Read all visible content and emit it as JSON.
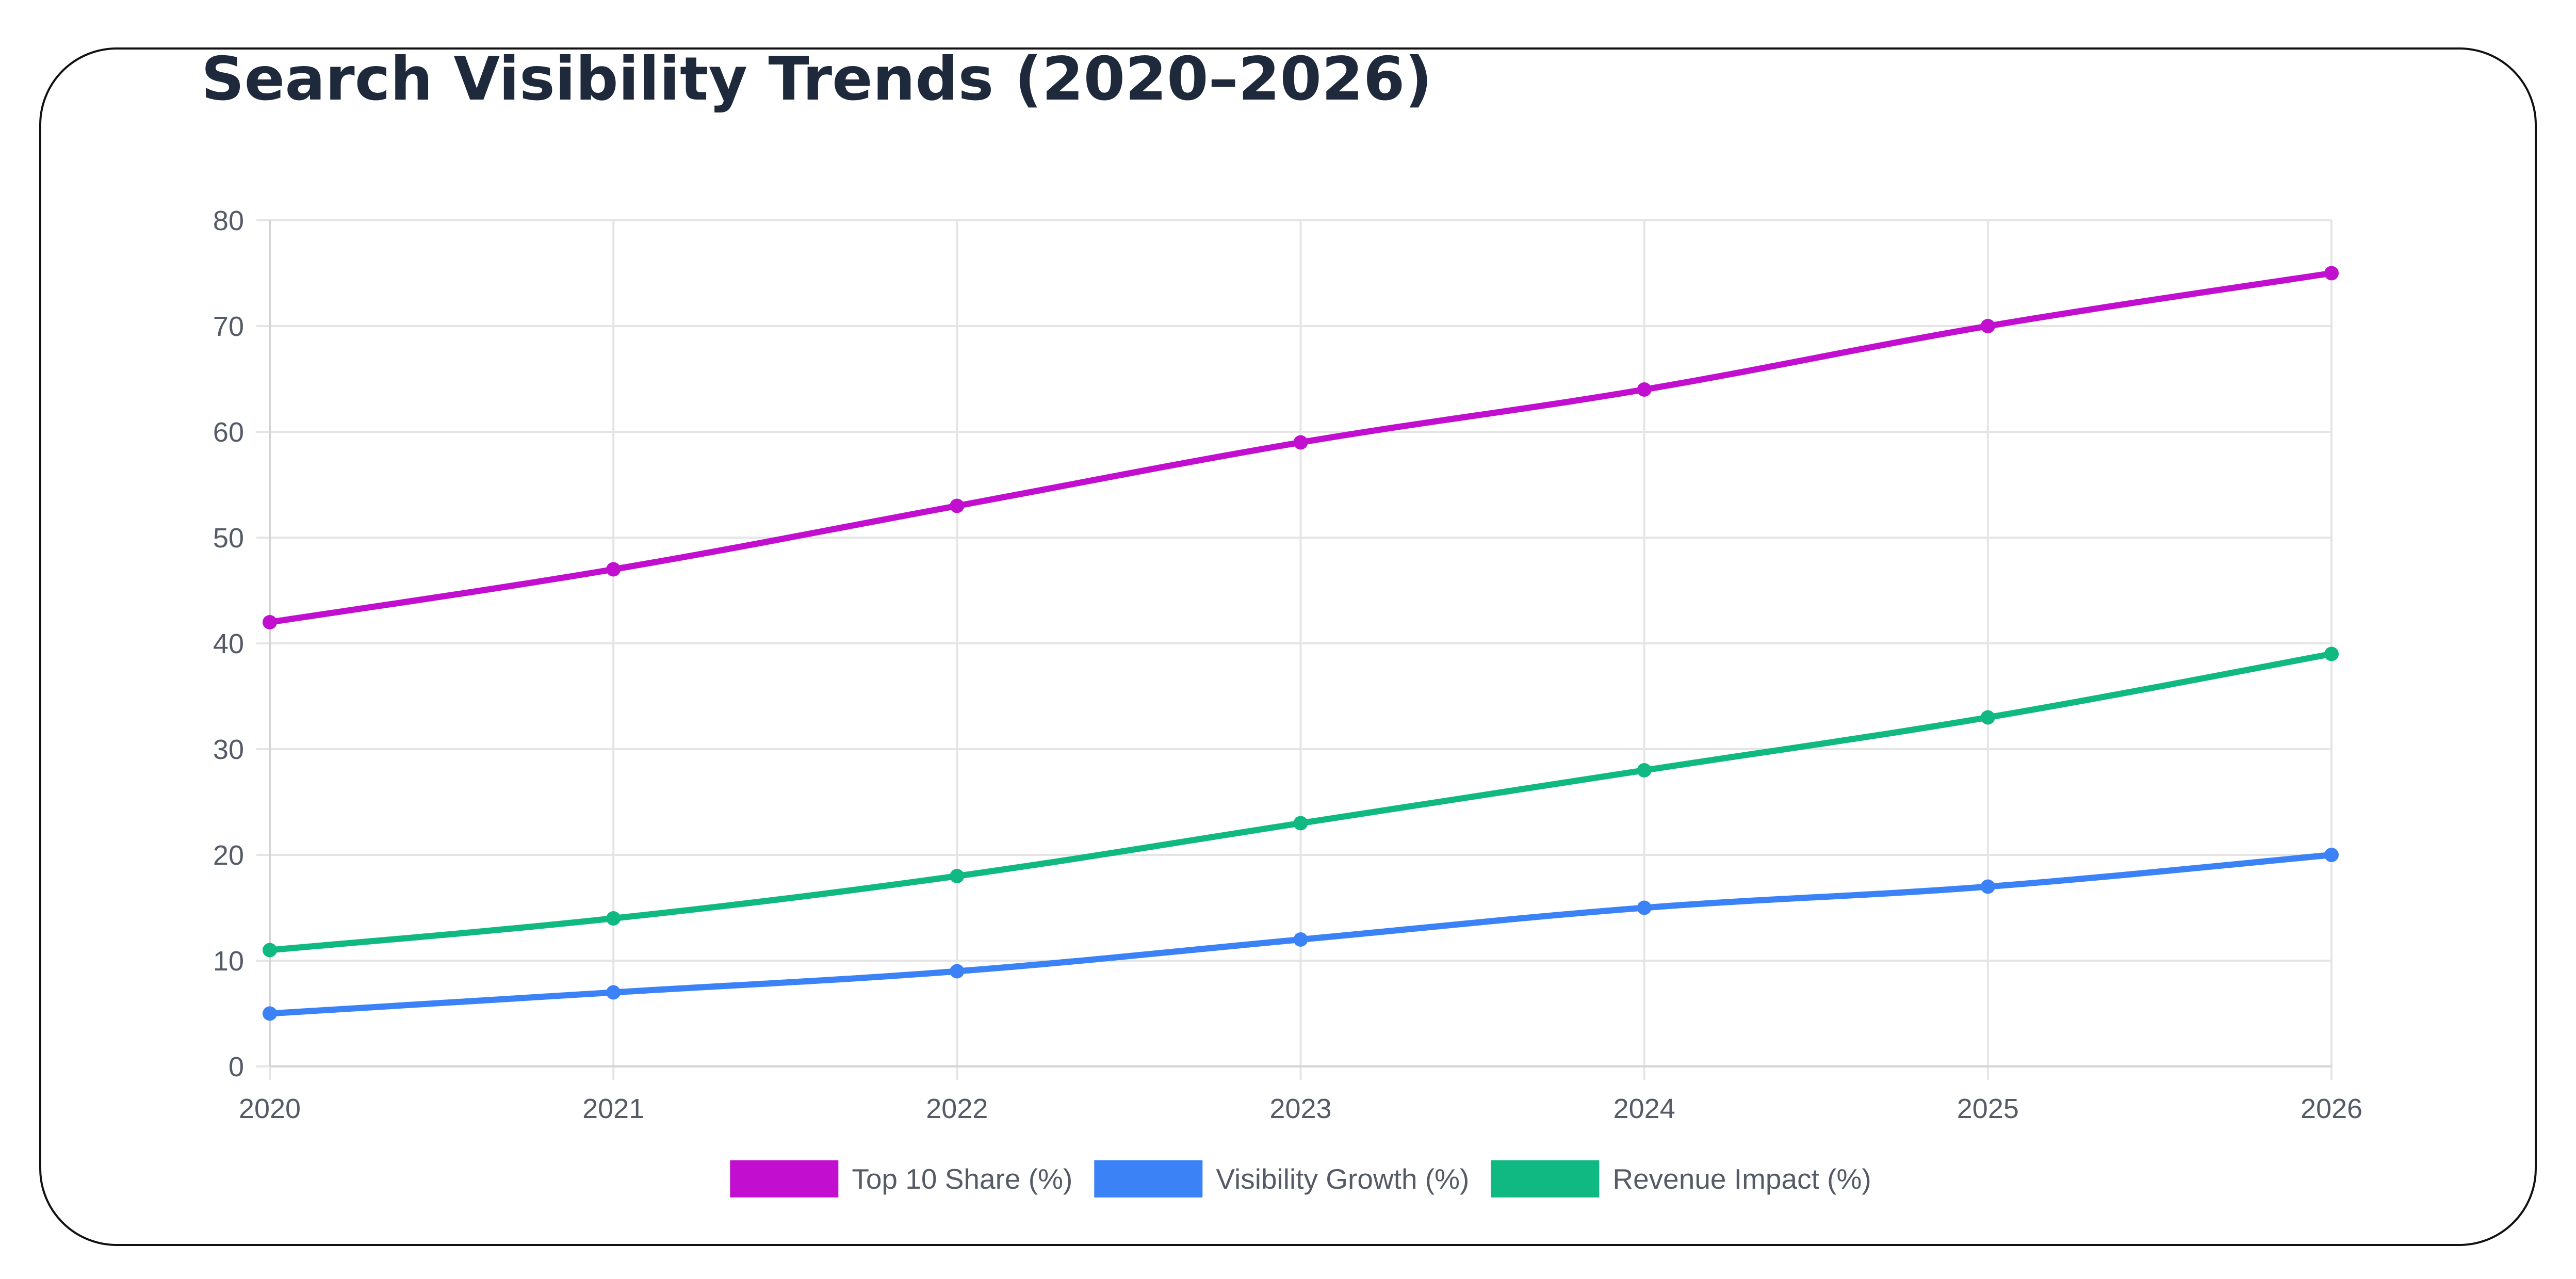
{
  "chart_data": {
    "type": "line",
    "title": "Search Visibility Trends (2020–2026)",
    "xlabel": "",
    "ylabel": "",
    "x": [
      "2020",
      "2021",
      "2022",
      "2023",
      "2024",
      "2025",
      "2026"
    ],
    "ylim": [
      0,
      80
    ],
    "yticks": [
      0,
      10,
      20,
      30,
      40,
      50,
      60,
      70,
      80
    ],
    "grid": true,
    "legend_position": "bottom",
    "series": [
      {
        "name": "Top 10 Share (%)",
        "color": "#c20fcf",
        "values": [
          42,
          47,
          53,
          59,
          64,
          70,
          75
        ]
      },
      {
        "name": "Visibility Growth (%)",
        "color": "#3b82f6",
        "values": [
          5,
          7,
          9,
          12,
          15,
          17,
          20
        ]
      },
      {
        "name": "Revenue Impact (%)",
        "color": "#10b981",
        "values": [
          11,
          14,
          18,
          23,
          28,
          33,
          39
        ]
      }
    ]
  }
}
